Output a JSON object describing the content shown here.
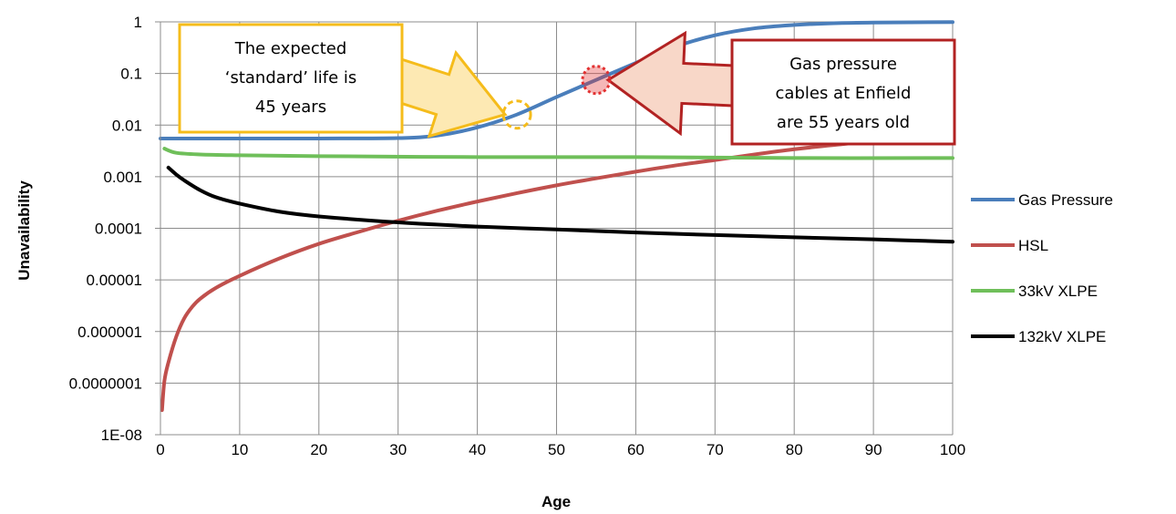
{
  "chart_data": {
    "type": "line",
    "xlabel": "Age",
    "ylabel": "Unavailability",
    "x_ticks": [
      0,
      10,
      20,
      30,
      40,
      50,
      60,
      70,
      80,
      90,
      100
    ],
    "y_tick_labels": [
      "1E-08",
      "0.0000001",
      "0.000001",
      "0.00001",
      "0.0001",
      "0.001",
      "0.01",
      "0.1",
      "1"
    ],
    "y_scale": "log",
    "xlim": [
      0,
      100
    ],
    "ylim": [
      1e-08,
      1
    ],
    "grid": true,
    "legend_position": "right",
    "series": [
      {
        "name": "Gas Pressure",
        "color": "#4a7ebb",
        "points": [
          [
            0,
            0.0055
          ],
          [
            10,
            0.0055
          ],
          [
            20,
            0.0055
          ],
          [
            30,
            0.0056
          ],
          [
            35,
            0.0063
          ],
          [
            40,
            0.009
          ],
          [
            45,
            0.016
          ],
          [
            50,
            0.035
          ],
          [
            55,
            0.075
          ],
          [
            60,
            0.16
          ],
          [
            65,
            0.33
          ],
          [
            70,
            0.55
          ],
          [
            75,
            0.75
          ],
          [
            80,
            0.87
          ],
          [
            85,
            0.94
          ],
          [
            90,
            0.97
          ],
          [
            100,
            0.99
          ]
        ]
      },
      {
        "name": "HSL",
        "color": "#c0504d",
        "points": [
          [
            0.2,
            3e-08
          ],
          [
            0.5,
            1.1e-07
          ],
          [
            1,
            2.5e-07
          ],
          [
            2,
            8e-07
          ],
          [
            3,
            1.8e-06
          ],
          [
            4,
            3e-06
          ],
          [
            5,
            4.3e-06
          ],
          [
            7,
            7e-06
          ],
          [
            10,
            1.2e-05
          ],
          [
            15,
            2.6e-05
          ],
          [
            20,
            5e-05
          ],
          [
            25,
            8.5e-05
          ],
          [
            30,
            0.00014
          ],
          [
            35,
            0.00022
          ],
          [
            40,
            0.00033
          ],
          [
            45,
            0.00048
          ],
          [
            50,
            0.00068
          ],
          [
            55,
            0.00093
          ],
          [
            60,
            0.00125
          ],
          [
            65,
            0.00165
          ],
          [
            70,
            0.0021
          ],
          [
            75,
            0.0027
          ],
          [
            80,
            0.0034
          ],
          [
            85,
            0.0041
          ],
          [
            90,
            0.0048
          ],
          [
            100,
            0.0055
          ]
        ]
      },
      {
        "name": "33kV XLPE",
        "color": "#6fbf5a",
        "points": [
          [
            0.5,
            0.0035
          ],
          [
            2,
            0.0029
          ],
          [
            5,
            0.0027
          ],
          [
            10,
            0.0026
          ],
          [
            20,
            0.0025
          ],
          [
            40,
            0.0024
          ],
          [
            60,
            0.0024
          ],
          [
            80,
            0.0023
          ],
          [
            100,
            0.0023
          ]
        ]
      },
      {
        "name": "132kV XLPE",
        "color": "#000000",
        "points": [
          [
            1,
            0.0015
          ],
          [
            2,
            0.0011
          ],
          [
            3,
            0.00085
          ],
          [
            5,
            0.00055
          ],
          [
            7,
            0.0004
          ],
          [
            10,
            0.0003
          ],
          [
            15,
            0.00021
          ],
          [
            20,
            0.00017
          ],
          [
            30,
            0.00013
          ],
          [
            40,
            0.000108
          ],
          [
            50,
            9.5e-05
          ],
          [
            60,
            8.3e-05
          ],
          [
            70,
            7.4e-05
          ],
          [
            80,
            6.7e-05
          ],
          [
            90,
            6.1e-05
          ],
          [
            100,
            5.5e-05
          ]
        ]
      }
    ],
    "annotations": [
      {
        "lines": [
          "The expected",
          "‘standard’ life is",
          "45 years"
        ],
        "target": [
          45,
          0.016
        ],
        "border_color": "#f5bc1b",
        "arrow_fill": "#fde9b3",
        "marker_style": "dashed-circle",
        "marker_color": "#f5bc1b"
      },
      {
        "lines": [
          "Gas pressure",
          "cables at Enfield",
          "are 55 years old"
        ],
        "target": [
          55,
          0.075
        ],
        "border_color": "#b22222",
        "arrow_fill": "#f8d7c8",
        "marker_style": "dotted-circle",
        "marker_color": "#e23030"
      }
    ]
  }
}
